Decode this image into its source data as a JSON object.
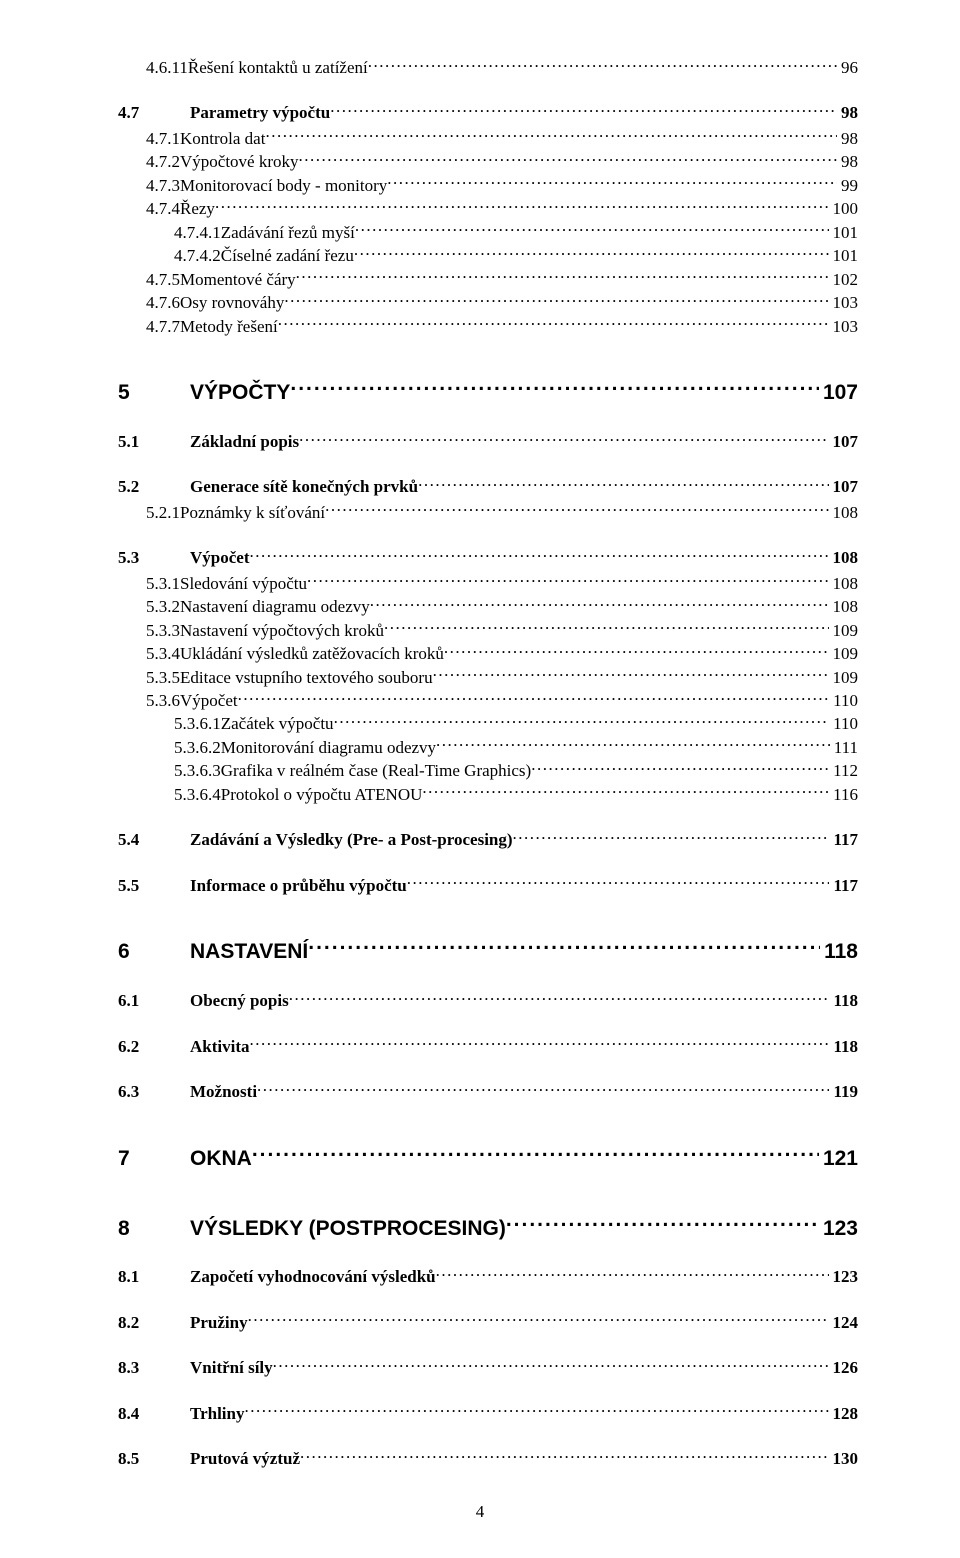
{
  "page_number": "4",
  "entries": [
    {
      "level": 3,
      "num": "4.6.11",
      "title": "Řešení kontaktů u zatížení",
      "page": "96"
    },
    {
      "level": 2,
      "num": "4.7",
      "title": "Parametry výpočtu",
      "page": "98"
    },
    {
      "level": 3,
      "num": "4.7.1",
      "title": "Kontrola dat",
      "page": "98"
    },
    {
      "level": 3,
      "num": "4.7.2",
      "title": "Výpočtové kroky",
      "page": "98"
    },
    {
      "level": 3,
      "num": "4.7.3",
      "title": "Monitorovací body - monitory",
      "page": "99"
    },
    {
      "level": 3,
      "num": "4.7.4",
      "title": "Řezy",
      "page": "100"
    },
    {
      "level": 4,
      "num": "4.7.4.1",
      "title": "Zadávání řezů myší",
      "page": "101"
    },
    {
      "level": 4,
      "num": "4.7.4.2",
      "title": "Číselné zadání řezu",
      "page": "101"
    },
    {
      "level": 3,
      "num": "4.7.5",
      "title": "Momentové čáry",
      "page": "102"
    },
    {
      "level": 3,
      "num": "4.7.6",
      "title": "Osy rovnováhy",
      "page": "103"
    },
    {
      "level": 3,
      "num": "4.7.7",
      "title": "Metody řešení",
      "page": "103"
    },
    {
      "level": 1,
      "num": "5",
      "title": "VÝPOČTY",
      "page": "107"
    },
    {
      "level": 2,
      "num": "5.1",
      "title": "Základní popis",
      "page": "107"
    },
    {
      "level": 2,
      "num": "5.2",
      "title": "Generace sítě konečných prvků",
      "page": "107"
    },
    {
      "level": 3,
      "num": "5.2.1",
      "title": "Poznámky k síťování",
      "page": "108"
    },
    {
      "level": 2,
      "num": "5.3",
      "title": "Výpočet",
      "page": "108"
    },
    {
      "level": 3,
      "num": "5.3.1",
      "title": "Sledování výpočtu",
      "page": "108"
    },
    {
      "level": 3,
      "num": "5.3.2",
      "title": "Nastavení diagramu odezvy",
      "page": "108"
    },
    {
      "level": 3,
      "num": "5.3.3",
      "title": "Nastavení výpočtových kroků",
      "page": "109"
    },
    {
      "level": 3,
      "num": "5.3.4",
      "title": "Ukládání výsledků zatěžovacích kroků",
      "page": "109"
    },
    {
      "level": 3,
      "num": "5.3.5",
      "title": "Editace vstupního textového souboru",
      "page": "109"
    },
    {
      "level": 3,
      "num": "5.3.6",
      "title": "Výpočet",
      "page": "110"
    },
    {
      "level": 4,
      "num": "5.3.6.1",
      "title": "Začátek výpočtu",
      "page": "110"
    },
    {
      "level": 4,
      "num": "5.3.6.2",
      "title": "Monitorování diagramu odezvy",
      "page": "111"
    },
    {
      "level": 4,
      "num": "5.3.6.3",
      "title": "Grafika v reálném čase (Real-Time Graphics)",
      "page": "112"
    },
    {
      "level": 4,
      "num": "5.3.6.4",
      "title": "Protokol o výpočtu ATENOU",
      "page": "116"
    },
    {
      "level": 2,
      "num": "5.4",
      "title": "Zadávání a Výsledky (Pre- a Post-procesing)",
      "page": "117"
    },
    {
      "level": 2,
      "num": "5.5",
      "title": "Informace o průběhu výpočtu",
      "page": "117"
    },
    {
      "level": 1,
      "num": "6",
      "title": "NASTAVENÍ",
      "page": "118"
    },
    {
      "level": 2,
      "num": "6.1",
      "title": "Obecný popis",
      "page": "118"
    },
    {
      "level": 2,
      "num": "6.2",
      "title": "Aktivita",
      "page": "118"
    },
    {
      "level": 2,
      "num": "6.3",
      "title": "Možnosti",
      "page": "119"
    },
    {
      "level": 1,
      "num": "7",
      "title": "OKNA",
      "page": "121"
    },
    {
      "level": 1,
      "num": "8",
      "title": "VÝSLEDKY (POSTPROCESING)",
      "page": "123"
    },
    {
      "level": 2,
      "num": "8.1",
      "title": "Započetí vyhodnocování výsledků",
      "page": "123"
    },
    {
      "level": 2,
      "num": "8.2",
      "title": "Pružiny",
      "page": "124"
    },
    {
      "level": 2,
      "num": "8.3",
      "title": "Vnitřní síly",
      "page": "126"
    },
    {
      "level": 2,
      "num": "8.4",
      "title": "Trhliny",
      "page": "128"
    },
    {
      "level": 2,
      "num": "8.5",
      "title": "Prutová výztuž",
      "page": "130"
    }
  ]
}
